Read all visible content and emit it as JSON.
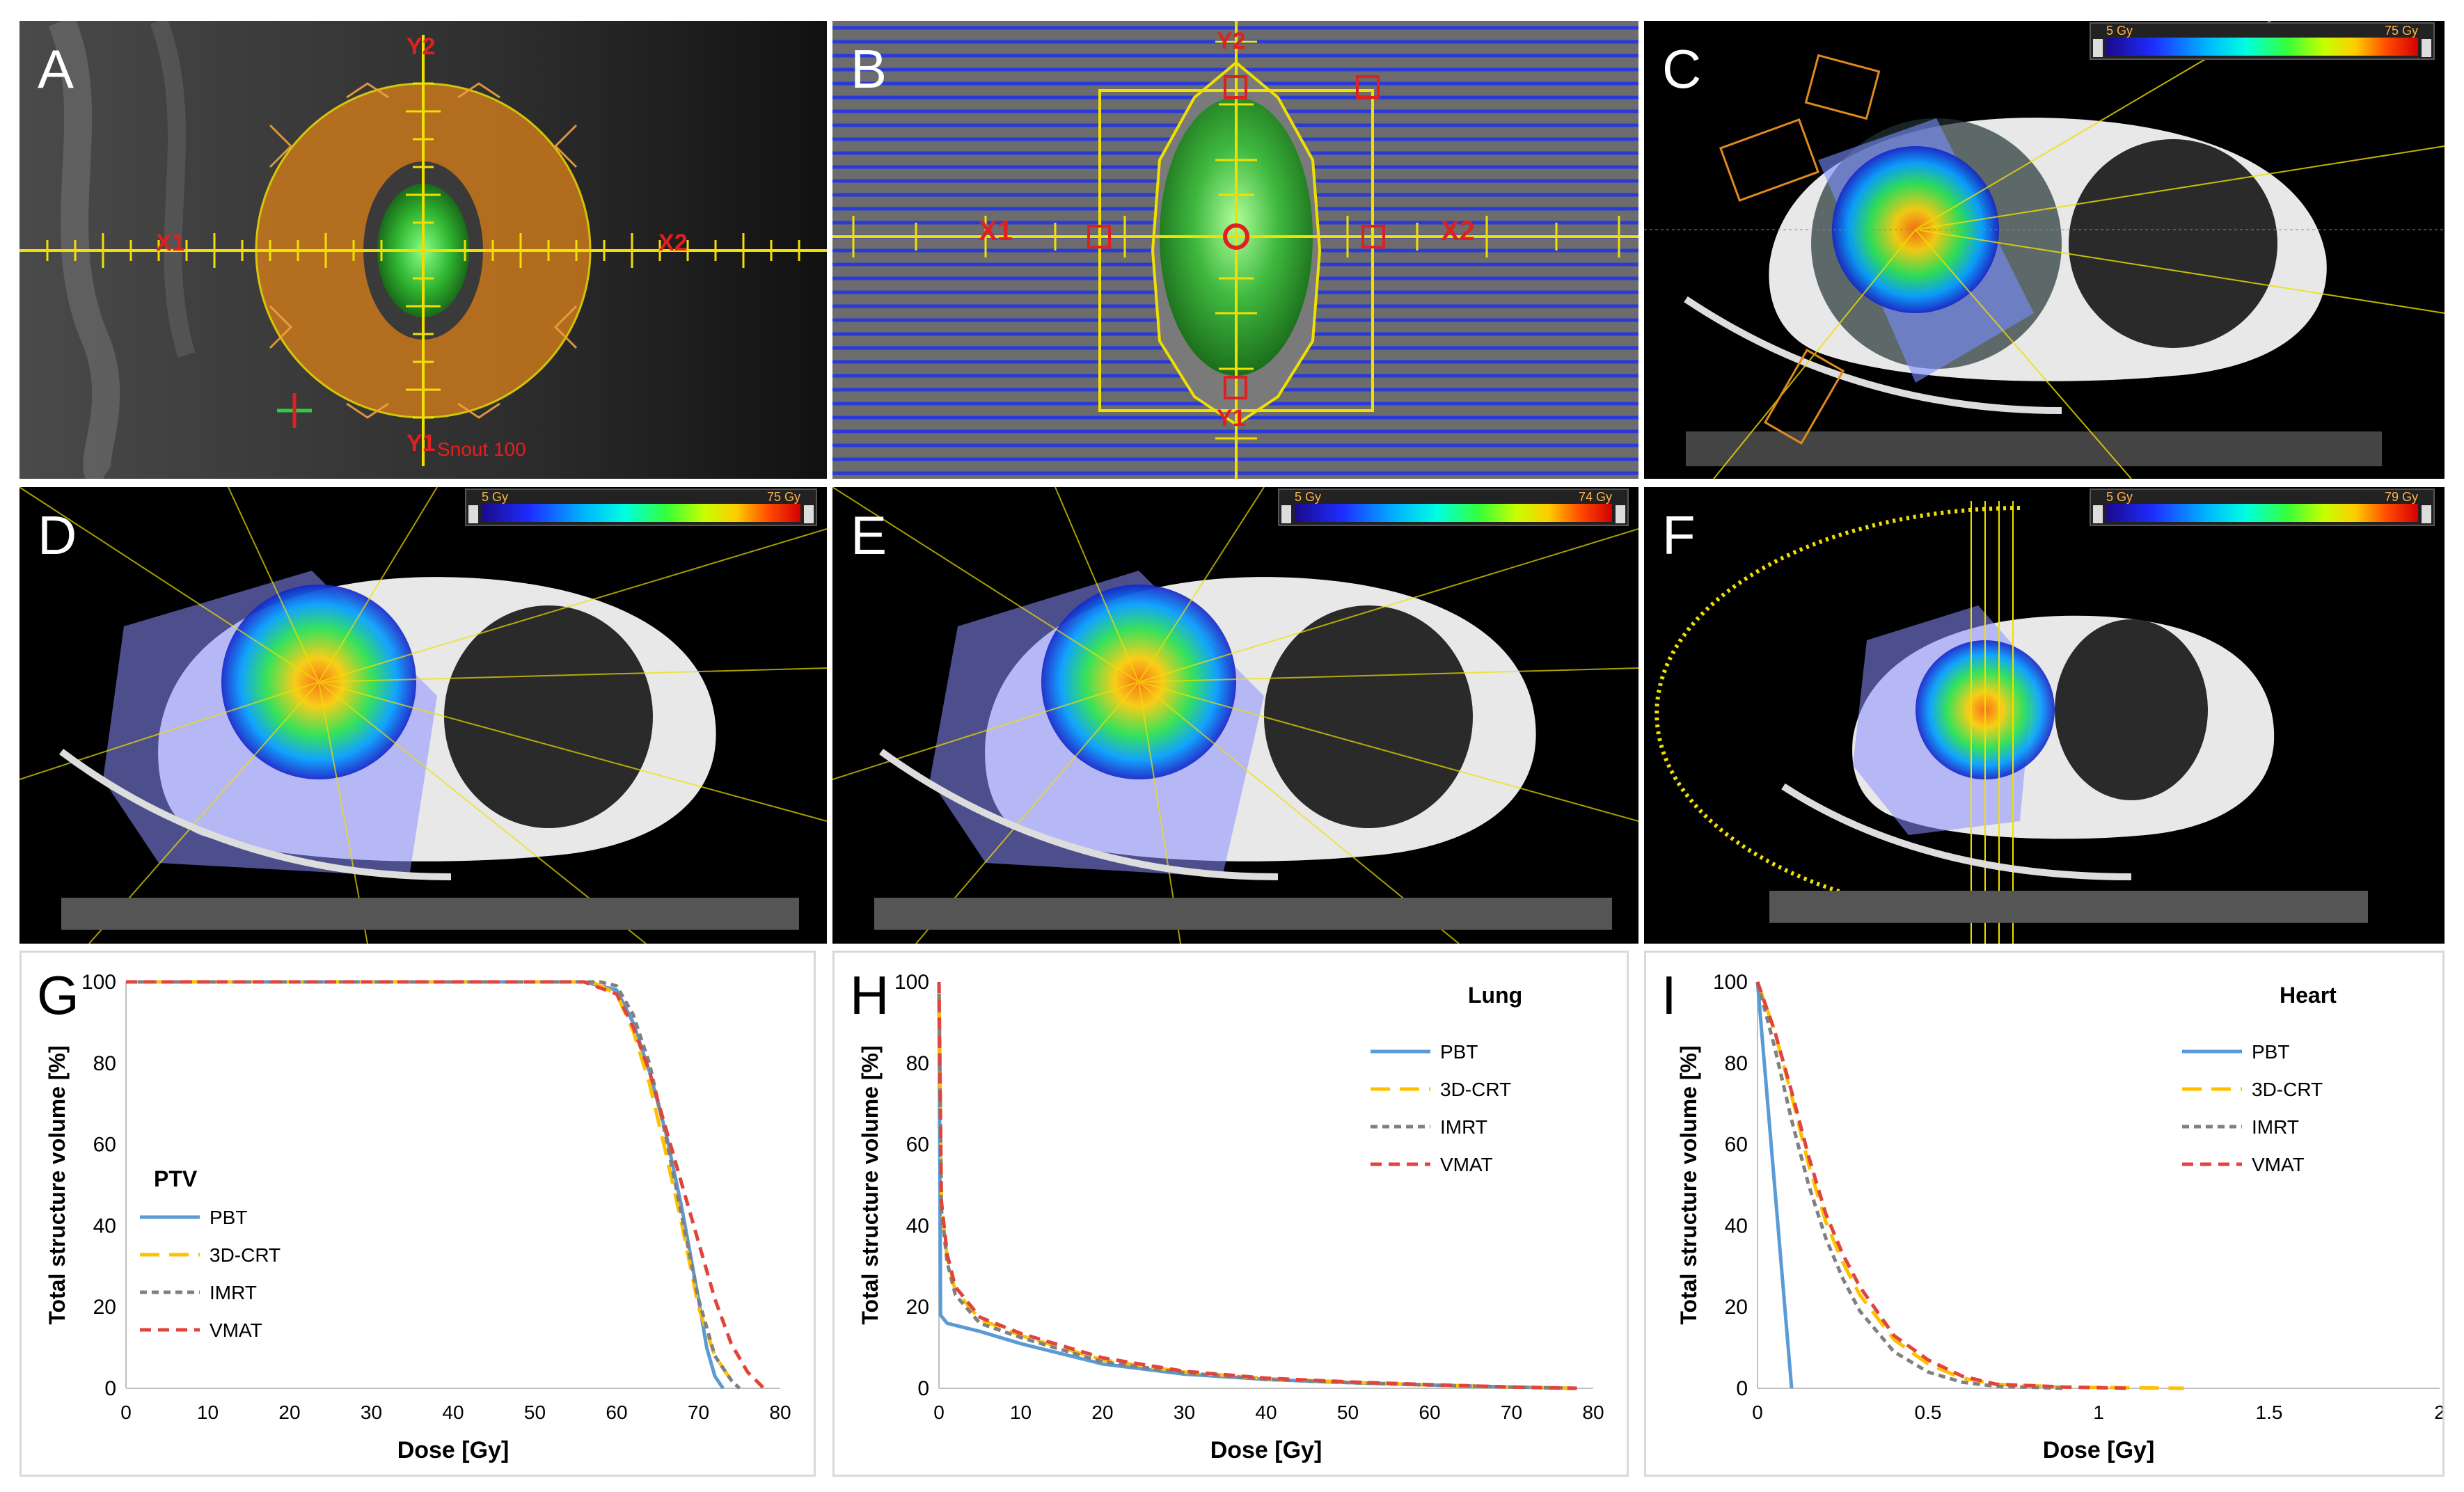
{
  "panels": {
    "A": {
      "label": "A",
      "tags": {
        "y2": "Y2",
        "y1": "Y1",
        "x1": "X1",
        "x2": "X2",
        "snout": "Snout 100"
      }
    },
    "B": {
      "label": "B",
      "tags": {
        "y2": "Y2",
        "y1": "Y1",
        "x1": "X1",
        "x2": "X2"
      }
    },
    "C": {
      "label": "C",
      "colorbar": {
        "min": "5 Gy",
        "max": "75 Gy"
      }
    },
    "D": {
      "label": "D",
      "colorbar": {
        "min": "5 Gy",
        "max": "75 Gy"
      }
    },
    "E": {
      "label": "E",
      "colorbar": {
        "min": "5 Gy",
        "max": "74 Gy"
      }
    },
    "F": {
      "label": "F",
      "colorbar": {
        "min": "5 Gy",
        "max": "79 Gy"
      }
    },
    "G": {
      "label": "G"
    },
    "H": {
      "label": "H"
    },
    "I": {
      "label": "I"
    }
  },
  "colors": {
    "PBT": "#5b9bd5",
    "3D-CRT": "#ffc000",
    "IMRT": "#808080",
    "VMAT": "#e0443c",
    "accent_yellow": "#f0e000",
    "beam_orange": "#e08a1c"
  },
  "chart_data": [
    {
      "type": "line",
      "panel": "G",
      "title": "",
      "structure": "PTV",
      "xlabel": "Dose [Gy]",
      "ylabel": "Total structure volume [%]",
      "xlim": [
        0,
        80
      ],
      "ylim": [
        0,
        100
      ],
      "xticks": [
        0,
        10,
        20,
        30,
        40,
        50,
        60,
        70,
        80
      ],
      "yticks": [
        0,
        20,
        40,
        60,
        80,
        100
      ],
      "xtick_labels": [
        "0",
        "10",
        "20",
        "30",
        "40",
        "50",
        "60",
        "70",
        "80"
      ],
      "ytick_labels": [
        "0",
        "20",
        "40",
        "60",
        "80",
        "100"
      ],
      "legend": [
        "PBT",
        "3D-CRT",
        "IMRT",
        "VMAT"
      ],
      "series": [
        {
          "name": "PBT",
          "x": [
            0,
            56,
            60,
            62,
            64,
            66,
            68,
            70,
            71,
            72,
            73
          ],
          "y": [
            100,
            100,
            98,
            90,
            78,
            63,
            44,
            22,
            10,
            3,
            0
          ]
        },
        {
          "name": "3D-CRT",
          "x": [
            0,
            57,
            60,
            62,
            64,
            66,
            68,
            70,
            72,
            74,
            75
          ],
          "y": [
            100,
            100,
            97,
            88,
            75,
            58,
            40,
            20,
            8,
            2,
            0
          ]
        },
        {
          "name": "IMRT",
          "x": [
            0,
            58,
            60,
            62,
            64,
            66,
            68,
            70,
            72,
            74,
            75
          ],
          "y": [
            100,
            100,
            99,
            92,
            80,
            62,
            42,
            22,
            8,
            2,
            0
          ]
        },
        {
          "name": "VMAT",
          "x": [
            0,
            56,
            60,
            62,
            64,
            66,
            68,
            70,
            72,
            74,
            76,
            78
          ],
          "y": [
            100,
            100,
            97,
            89,
            78,
            64,
            50,
            36,
            22,
            11,
            4,
            0
          ]
        }
      ]
    },
    {
      "type": "line",
      "panel": "H",
      "structure": "Lung",
      "xlabel": "Dose [Gy]",
      "ylabel": "Total structure volume [%]",
      "xlim": [
        0,
        80
      ],
      "ylim": [
        0,
        100
      ],
      "xticks": [
        0,
        10,
        20,
        30,
        40,
        50,
        60,
        70,
        80
      ],
      "yticks": [
        0,
        20,
        40,
        60,
        80,
        100
      ],
      "xtick_labels": [
        "0",
        "10",
        "20",
        "30",
        "40",
        "50",
        "60",
        "70",
        "80"
      ],
      "ytick_labels": [
        "0",
        "20",
        "40",
        "60",
        "80",
        "100"
      ],
      "legend": [
        "PBT",
        "3D-CRT",
        "IMRT",
        "VMAT"
      ],
      "series": [
        {
          "name": "PBT",
          "x": [
            0,
            0.2,
            1,
            5,
            10,
            20,
            30,
            40,
            50,
            60,
            70,
            78
          ],
          "y": [
            100,
            18,
            16,
            14,
            11,
            6,
            3.5,
            2.2,
            1.4,
            0.8,
            0.3,
            0
          ]
        },
        {
          "name": "3D-CRT",
          "x": [
            0,
            0.3,
            1,
            2,
            5,
            10,
            20,
            30,
            40,
            50,
            60,
            70,
            78
          ],
          "y": [
            100,
            45,
            32,
            24,
            17,
            13,
            7,
            4,
            2.4,
            1.5,
            0.8,
            0.3,
            0
          ]
        },
        {
          "name": "IMRT",
          "x": [
            0,
            0.3,
            1,
            2,
            5,
            10,
            20,
            30,
            40,
            50,
            60,
            70,
            78
          ],
          "y": [
            100,
            44,
            31,
            23,
            16,
            12.5,
            6.5,
            3.8,
            2.2,
            1.4,
            0.8,
            0.3,
            0
          ]
        },
        {
          "name": "VMAT",
          "x": [
            0,
            0.3,
            1,
            2,
            5,
            10,
            20,
            30,
            40,
            50,
            60,
            70,
            78
          ],
          "y": [
            100,
            46,
            33,
            25,
            17.5,
            13.5,
            7.5,
            4.2,
            2.5,
            1.6,
            0.9,
            0.3,
            0
          ]
        }
      ]
    },
    {
      "type": "line",
      "panel": "I",
      "structure": "Heart",
      "xlabel": "Dose [Gy]",
      "ylabel": "Total structure volume [%]",
      "xlim": [
        0,
        2
      ],
      "ylim": [
        0,
        100
      ],
      "xticks": [
        0,
        0.5,
        1,
        1.5,
        2
      ],
      "yticks": [
        0,
        20,
        40,
        60,
        80,
        100
      ],
      "xtick_labels": [
        "0",
        "0.5",
        "1",
        "1.5",
        "2"
      ],
      "ytick_labels": [
        "0",
        "20",
        "40",
        "60",
        "80",
        "100"
      ],
      "legend": [
        "PBT",
        "3D-CRT",
        "IMRT",
        "VMAT"
      ],
      "series": [
        {
          "name": "PBT",
          "x": [
            0,
            0.02,
            0.05,
            0.08,
            0.1
          ],
          "y": [
            100,
            80,
            50,
            20,
            0
          ]
        },
        {
          "name": "3D-CRT",
          "x": [
            0,
            0.05,
            0.1,
            0.15,
            0.2,
            0.25,
            0.3,
            0.4,
            0.5,
            0.6,
            0.7,
            0.9,
            1.25
          ],
          "y": [
            100,
            88,
            72,
            55,
            41,
            31,
            23,
            12,
            6,
            2.5,
            1,
            0.3,
            0
          ]
        },
        {
          "name": "IMRT",
          "x": [
            0,
            0.05,
            0.1,
            0.15,
            0.2,
            0.25,
            0.3,
            0.4,
            0.5,
            0.6,
            0.7,
            0.9
          ],
          "y": [
            100,
            84,
            66,
            50,
            37,
            27,
            19,
            9,
            4,
            1.5,
            0.5,
            0
          ]
        },
        {
          "name": "VMAT",
          "x": [
            0,
            0.05,
            0.1,
            0.15,
            0.2,
            0.25,
            0.3,
            0.4,
            0.5,
            0.6,
            0.7,
            0.9,
            1.1
          ],
          "y": [
            100,
            88,
            73,
            57,
            43,
            33,
            25,
            13,
            7,
            3,
            1,
            0.3,
            0
          ]
        }
      ]
    }
  ]
}
